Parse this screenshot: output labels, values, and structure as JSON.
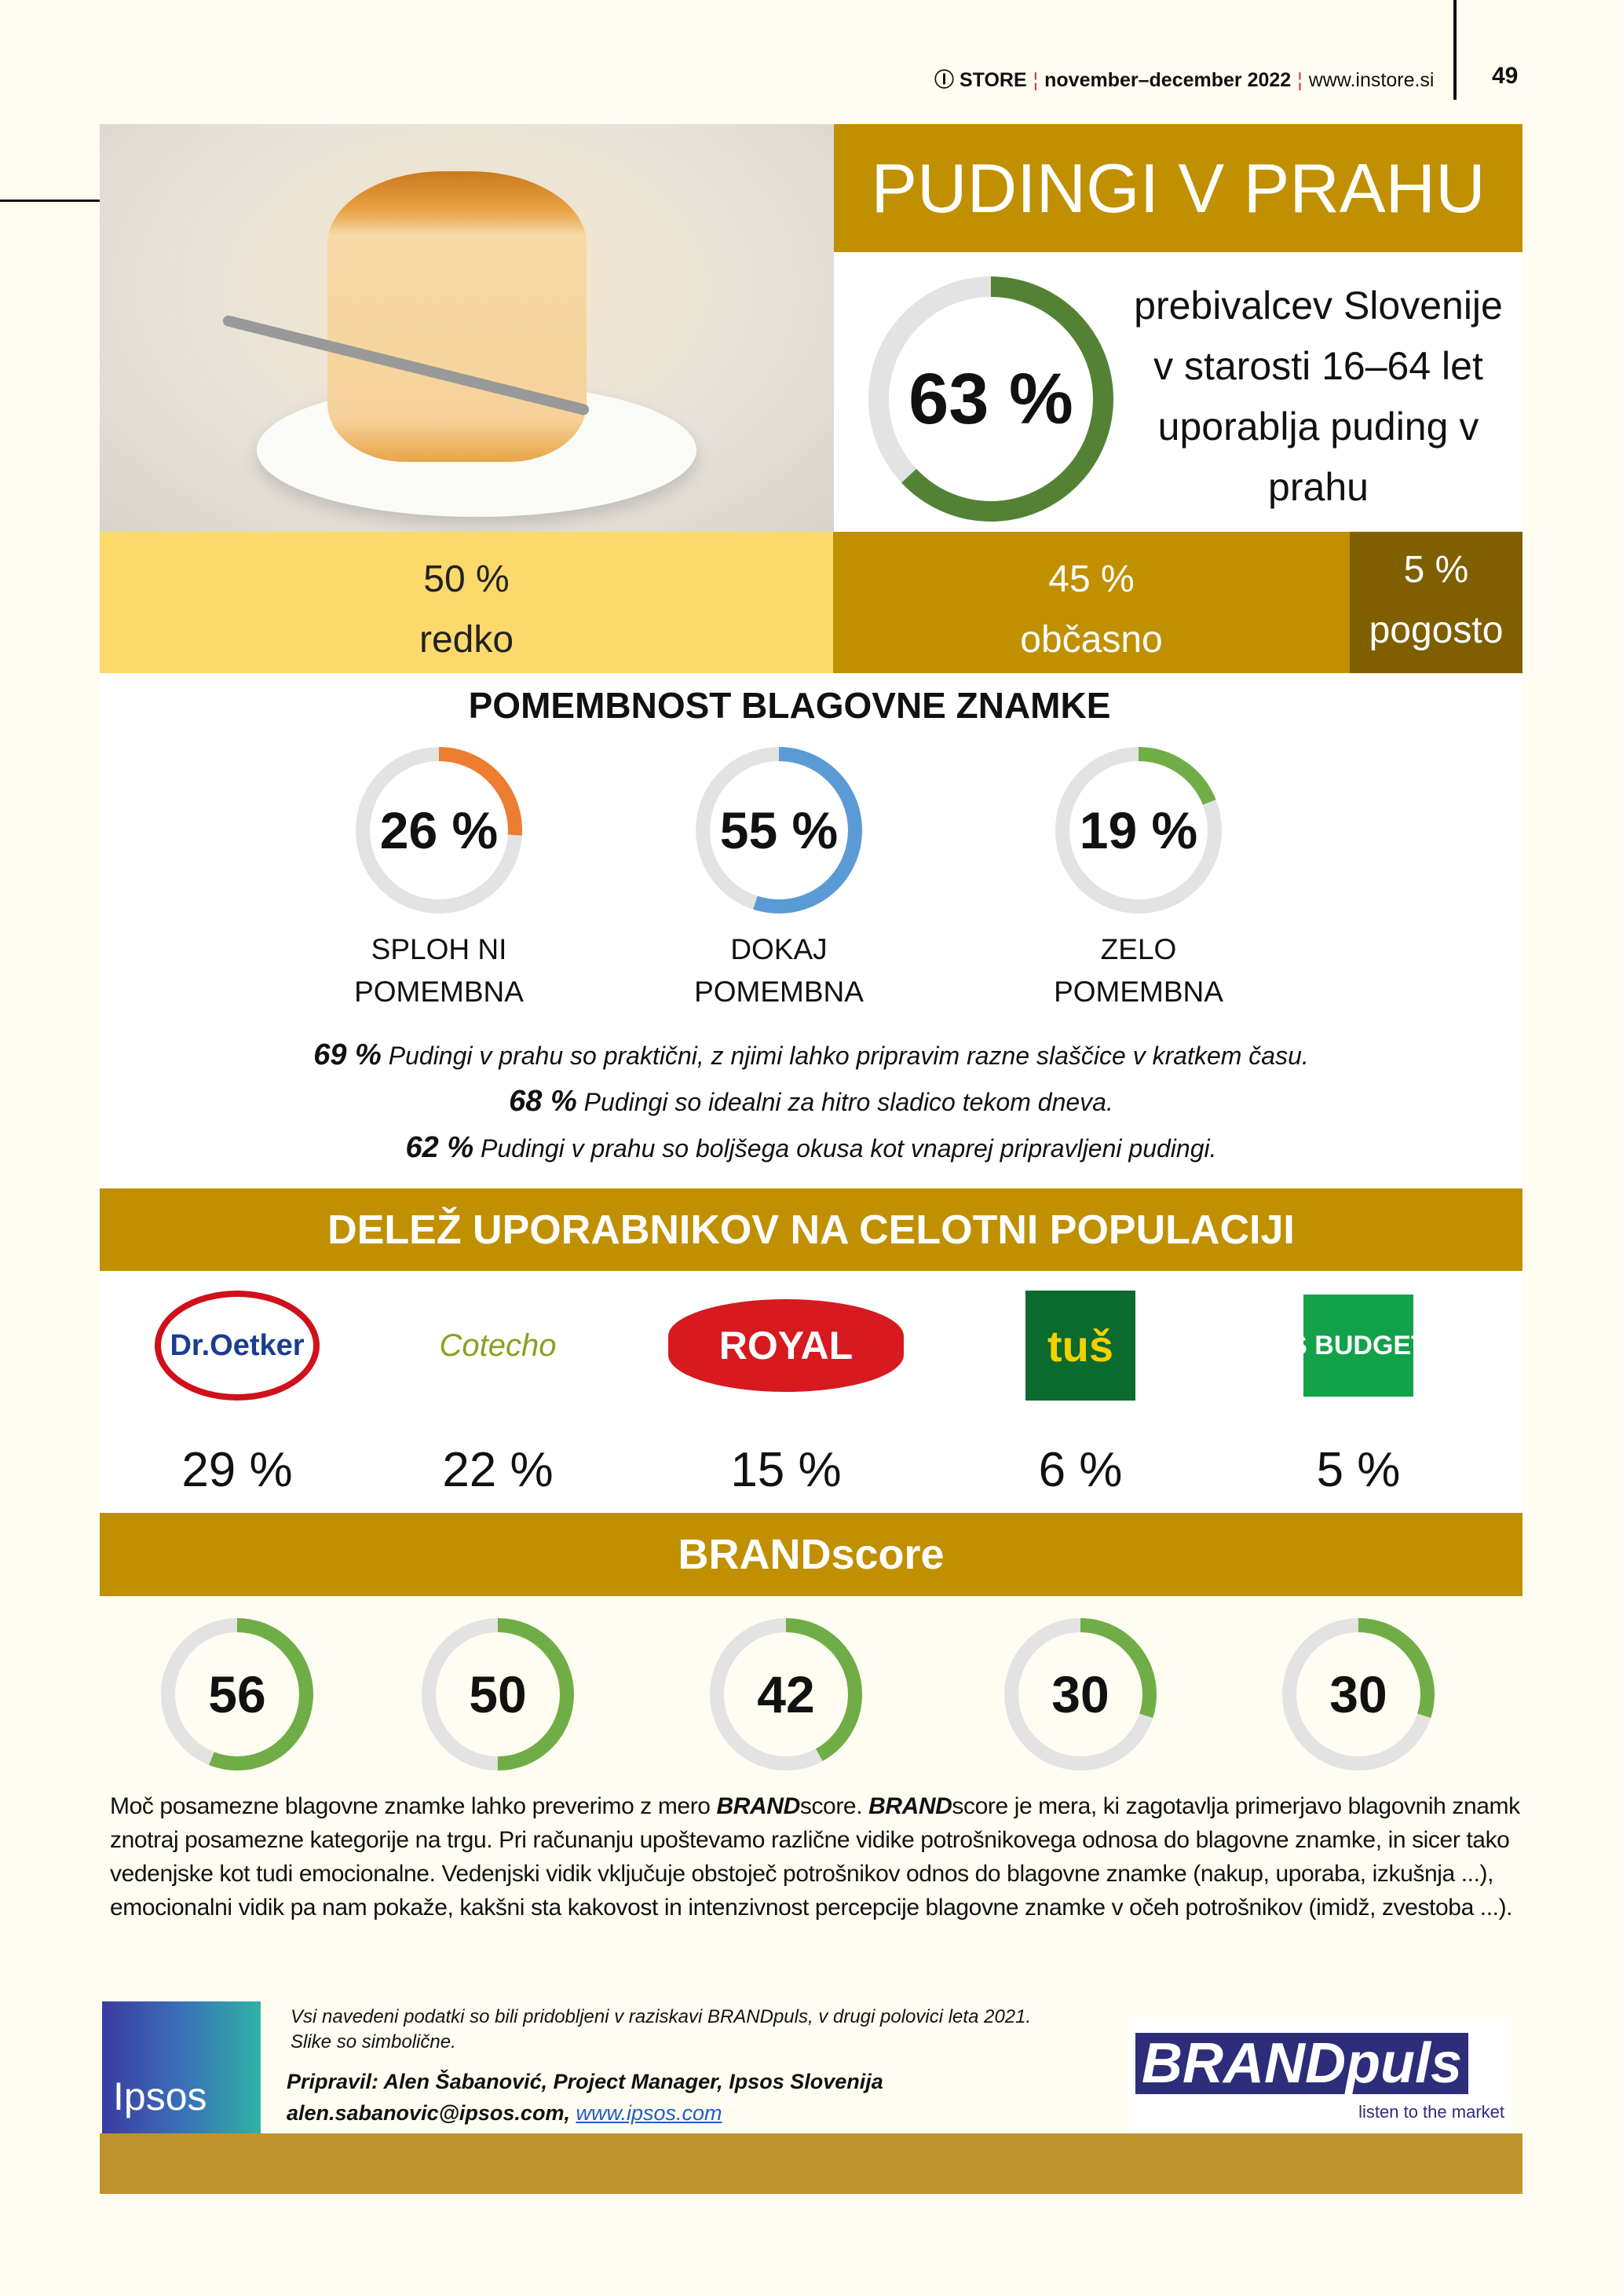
{
  "header": {
    "brand": "STORE",
    "issue": "november–december 2022",
    "url": "www.instore.si",
    "page": "49"
  },
  "title": "PUDINGI V PRAHU",
  "usage": {
    "percent": 63,
    "label": "63 %",
    "text_lines": [
      "prebivalcev Slovenije",
      "v starosti 16–64 let",
      "uporablja puding v",
      "prahu"
    ]
  },
  "frequency": [
    {
      "value": "50 %",
      "label": "redko",
      "color": "#fcd96b"
    },
    {
      "value": "45 %",
      "label": "občasno",
      "color": "#c09000"
    },
    {
      "value": "5 %",
      "label": "pogosto",
      "color": "#7f5f00"
    }
  ],
  "importance": {
    "title": "POMEMBNOST BLAGOVNE ZNAMKE",
    "items": [
      {
        "percent": 26,
        "label": "26 %",
        "line1": "SPLOH NI",
        "line2": "POMEMBNA",
        "color": "#ed7d31"
      },
      {
        "percent": 55,
        "label": "55 %",
        "line1": "DOKAJ",
        "line2": "POMEMBNA",
        "color": "#5b9bd5"
      },
      {
        "percent": 19,
        "label": "19 %",
        "line1": "ZELO",
        "line2": "POMEMBNA",
        "color": "#70ad47"
      }
    ]
  },
  "statements": [
    {
      "value": "69 %",
      "text": "Pudingi v prahu so praktični, z njimi lahko pripravim razne slaščice v kratkem času."
    },
    {
      "value": "68 %",
      "text": "Pudingi so idealni za hitro sladico tekom dneva."
    },
    {
      "value": "62 %",
      "text": "Pudingi v prahu so boljšega okusa kot vnaprej pripravljeni pudingi."
    }
  ],
  "share": {
    "title": "DELEŽ UPORABNIKOV NA CELOTNI POPULACIJI",
    "brands": [
      {
        "logo": "Dr.Oetker",
        "value": "29 %",
        "brandscore": 56
      },
      {
        "logo": "Cotecho",
        "value": "22 %",
        "brandscore": 50
      },
      {
        "logo": "ROYAL",
        "value": "15 %",
        "brandscore": 42
      },
      {
        "logo": "tuš",
        "value": "6 %",
        "brandscore": 30
      },
      {
        "logo": "S BUDGET",
        "value": "5 %",
        "brandscore": 30
      }
    ]
  },
  "brandscore": {
    "title": "BRANDscore",
    "color": "#70ad47"
  },
  "paragraph": {
    "p1": "Moč posamezne blagovne znamke lahko preverimo z mero ",
    "b1": "BRAND",
    "p2": "score. ",
    "b2": "BRAND",
    "p3": "score je mera, ki zagotavlja primerjavo blagovnih znamk znotraj posamezne kategorije na trgu. Pri računanju upoštevamo različne vidike potrošnikovega odnosa do blagovne znamke, in sicer tako vedenjske kot tudi emocionalne. Vedenjski vidik vključuje obstoječ potrošnikov odnos do blagovne znamke (nakup, uporaba, izkušnja ...), emocionalni vidik pa nam pokaže, kakšni sta kakovost in intenzivnost percepcije blagovne znamke v očeh potrošnikov (imidž, zvestoba ...)."
  },
  "footer": {
    "note1": "Vsi navedeni podatki so bili pridobljeni v raziskavi BRANDpuls, v drugi polovici leta 2021.",
    "note2": "Slike so simbolične.",
    "author": "Pripravil: Alen Šabanović, Project Manager, Ipsos Slovenija",
    "email": "alen.sabanovic@ipsos.com,",
    "link": "www.ipsos.com",
    "ipsos_logo": "Ipsos",
    "brandpuls_logo": "BRANDpuls",
    "brandpuls_tag": "listen to the market"
  },
  "colors": {
    "gold": "#c09000",
    "track": "#e3e3e3",
    "footer_band": "#bf9330"
  }
}
